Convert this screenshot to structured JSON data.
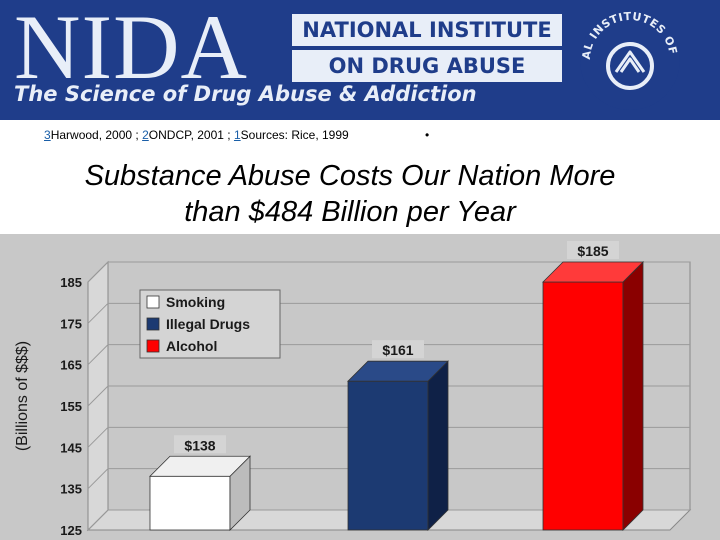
{
  "banner": {
    "logo_text": "NIDA",
    "institute_line1": "NATIONAL INSTITUTE",
    "institute_line2": "ON DRUG ABUSE",
    "tagline": "The Science of Drug Abuse & Addiction",
    "nih_seal_text": "NATIONAL INSTITUTES OF HEALTH"
  },
  "sources": {
    "items": [
      {
        "num": "3",
        "text": "Harwood, 2000 ;"
      },
      {
        "num": "2",
        "text": "ONDCP, 2001 ;"
      },
      {
        "num": "1",
        "text": "Sources: Rice, 1999"
      }
    ],
    "bullet": "•"
  },
  "slide": {
    "title_line1": "Substance Abuse Costs Our Nation More",
    "title_line2": "than $484 Billion per Year"
  },
  "colors": {
    "banner": "#1f3d8a",
    "smoking": "#ffffff",
    "illegal_drugs": "#1c3a72",
    "alcohol": "#ff0000",
    "chart_background": "#c8c8c8"
  },
  "chart_data": {
    "type": "bar",
    "ylabel": "(Billions of $$$)",
    "ylim": [
      125,
      185
    ],
    "yticks": [
      125,
      135,
      145,
      155,
      165,
      175,
      185
    ],
    "grid": true,
    "legend_position": "top-left",
    "style": "3d",
    "series": [
      {
        "name": "Smoking",
        "value": 138,
        "label": "$138"
      },
      {
        "name": "Illegal Drugs",
        "value": 161,
        "label": "$161"
      },
      {
        "name": "Alcohol",
        "value": 185,
        "label": "$185"
      }
    ]
  }
}
